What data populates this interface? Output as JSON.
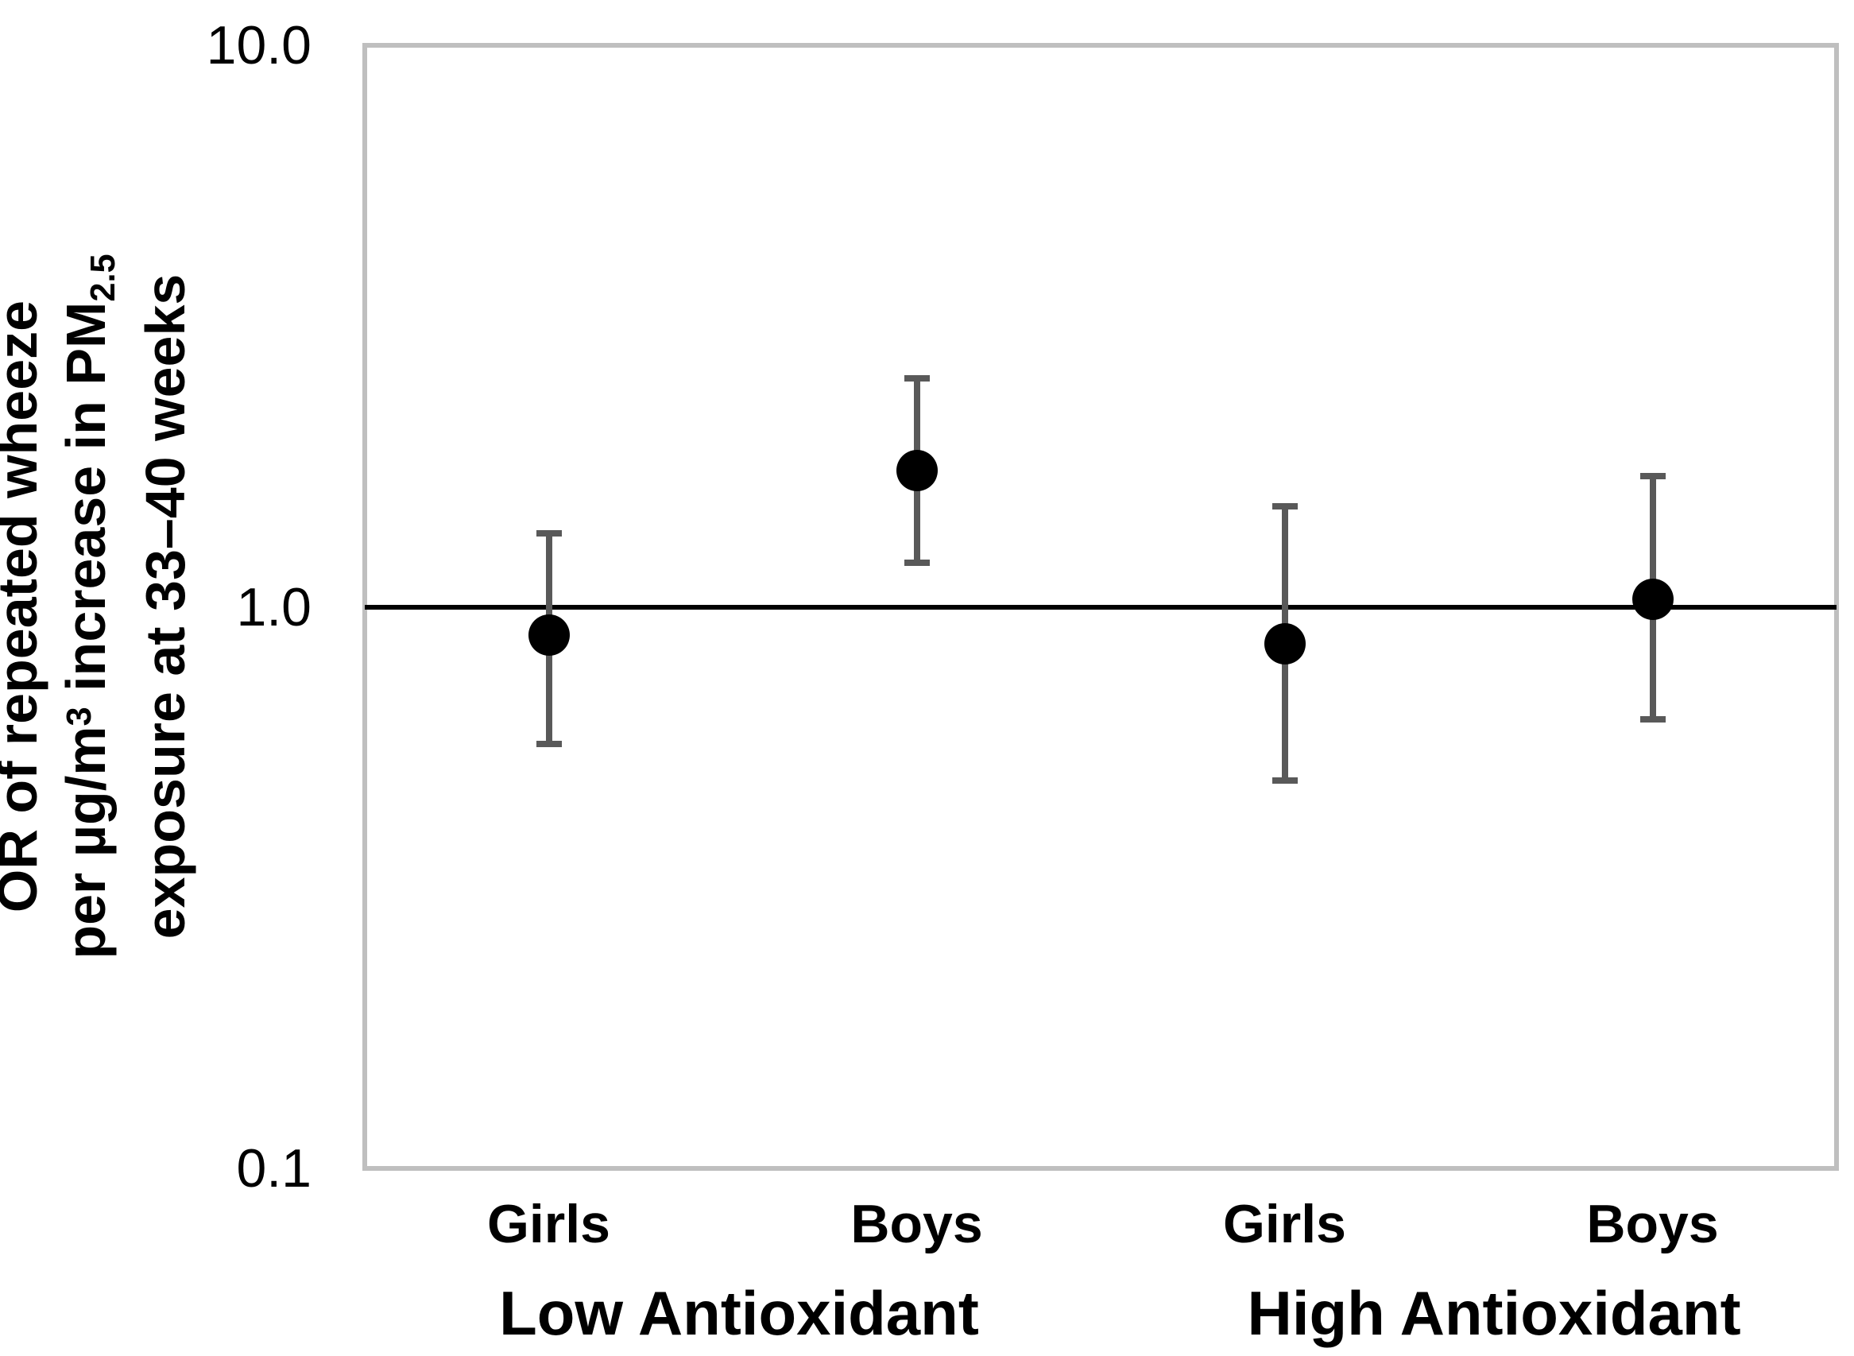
{
  "y_axis": {
    "ticks": [
      {
        "label": "10.0",
        "value": 10
      },
      {
        "label": "1.0",
        "value": 1
      },
      {
        "label": "0.1",
        "value": 0.1
      }
    ],
    "title_lines": [
      [
        {
          "t": "OR of repeated wheeze"
        }
      ],
      [
        {
          "t": "per µg/m"
        },
        {
          "t": "3",
          "s": "sup"
        },
        {
          "t": " increase in PM"
        },
        {
          "t": "2.5",
          "s": "sub"
        }
      ],
      [
        {
          "t": "exposure at 33–40 weeks"
        }
      ]
    ]
  },
  "chart_data": {
    "type": "scatter",
    "subtype": "point-estimates-with-95ci-error-bars",
    "title": "",
    "xlabel": "",
    "ylabel": "OR of repeated wheeze per µg/m³ increase in PM2.5 exposure at 33–40 weeks",
    "y_scale": "log",
    "ylim": [
      0.1,
      10
    ],
    "y_tick_labels": [
      "10.0",
      "1.0",
      "0.1"
    ],
    "reference_line": 1.0,
    "grid": false,
    "legend": "none",
    "categories": [
      "Girls",
      "Boys",
      "Girls",
      "Boys"
    ],
    "groups": [
      "Low Antioxidant",
      "High Antioxidant"
    ],
    "points": [
      {
        "group": "Low Antioxidant",
        "category": "Girls",
        "or": 0.89,
        "ci_low": 0.57,
        "ci_high": 1.35
      },
      {
        "group": "Low Antioxidant",
        "category": "Boys",
        "or": 1.75,
        "ci_low": 1.2,
        "ci_high": 2.55
      },
      {
        "group": "High Antioxidant",
        "category": "Girls",
        "or": 0.86,
        "ci_low": 0.49,
        "ci_high": 1.51
      },
      {
        "group": "High Antioxidant",
        "category": "Boys",
        "or": 1.03,
        "ci_low": 0.63,
        "ci_high": 1.71
      }
    ],
    "colors": {
      "marker": "#000000",
      "error_bar": "#595959",
      "reference_line": "#000000",
      "plot_border": "#bfbfbf",
      "background": "#ffffff",
      "text": "#000000"
    }
  }
}
